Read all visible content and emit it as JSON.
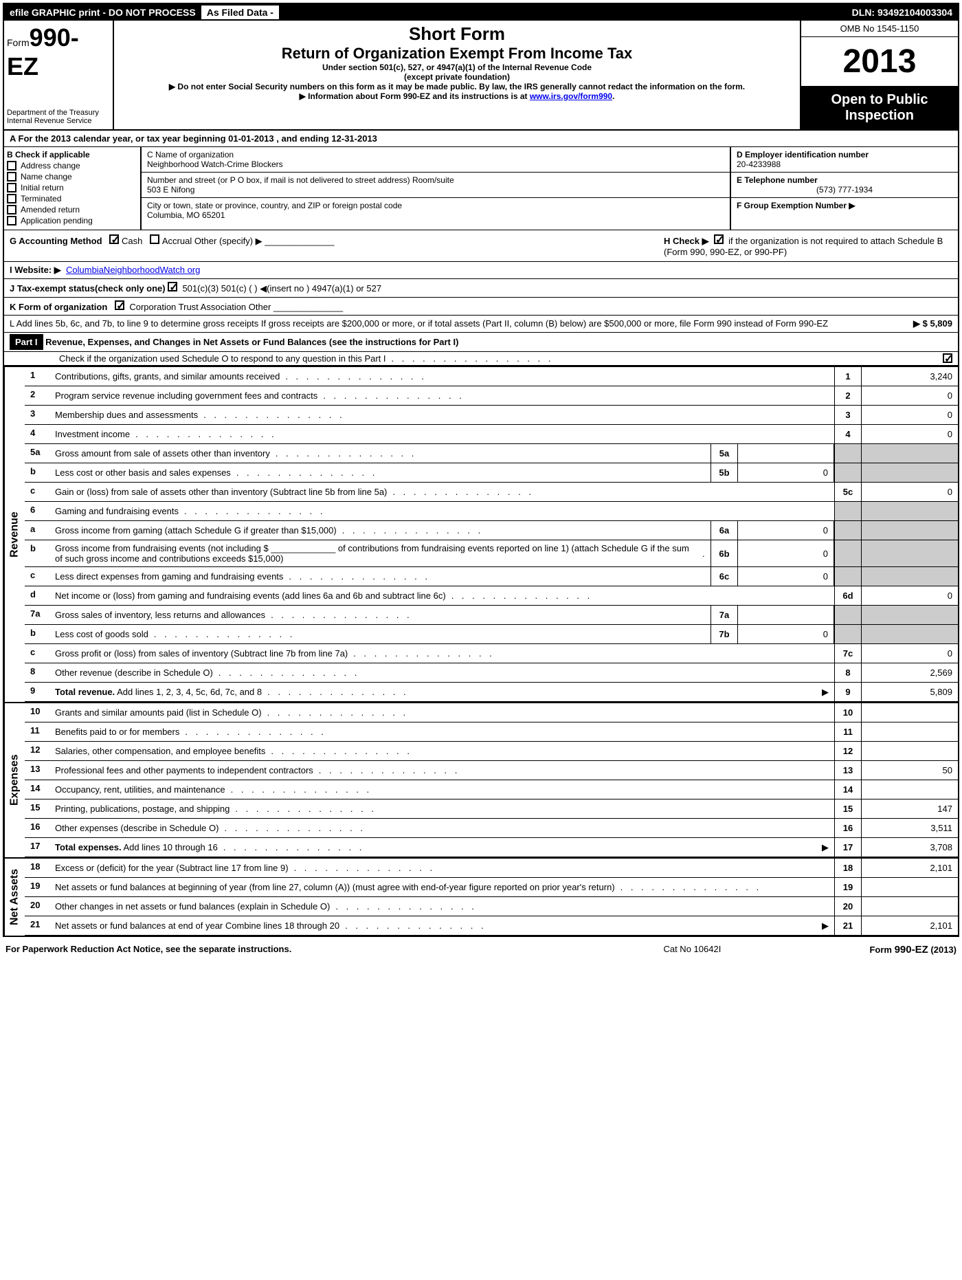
{
  "top_bar": {
    "left": "efile GRAPHIC print - DO NOT PROCESS",
    "mid": "As Filed Data -",
    "right": "DLN: 93492104003304"
  },
  "header": {
    "form_label": "Form",
    "form_number": "990-EZ",
    "dept1": "Department of the Treasury",
    "dept2": "Internal Revenue Service",
    "title1": "Short Form",
    "title2": "Return of Organization Exempt From Income Tax",
    "sub1": "Under section 501(c), 527, or 4947(a)(1) of the Internal Revenue Code",
    "sub2": "(except private foundation)",
    "sub3": "▶ Do not enter Social Security numbers on this form as it may be made public. By law, the IRS generally cannot redact the information on the form.",
    "sub4": "▶ Information about Form 990-EZ and its instructions is at ",
    "sub4_link": "www.irs.gov/form990",
    "omb": "OMB No 1545-1150",
    "year": "2013",
    "open": "Open to Public Inspection"
  },
  "row_a": "A  For the 2013 calendar year, or tax year beginning 01-01-2013         , and ending 12-31-2013",
  "col_b": {
    "header": "B  Check if applicable",
    "items": [
      "Address change",
      "Name change",
      "Initial return",
      "Terminated",
      "Amended return",
      "Application pending"
    ]
  },
  "col_c": {
    "name_label": "C Name of organization",
    "name": "Neighborhood Watch-Crime Blockers",
    "street_label": "Number and street (or P O box, if mail is not delivered to street address) Room/suite",
    "street": "503 E Nifong",
    "city_label": "City or town, state or province, country, and ZIP or foreign postal code",
    "city": "Columbia, MO  65201"
  },
  "col_d": {
    "ein_label": "D Employer identification number",
    "ein": "20-4233988",
    "tel_label": "E Telephone number",
    "tel": "(573) 777-1934",
    "group_label": "F Group Exemption Number   ▶"
  },
  "row_g": "G Accounting Method",
  "row_g_cash": "Cash",
  "row_g_accrual": "Accrual    Other (specify) ▶",
  "row_h": "H  Check ▶",
  "row_h2": "if the organization is not required to attach Schedule B (Form 990, 990-EZ, or 990-PF)",
  "row_i": "I Website: ▶",
  "row_i_link": "ColumbiaNeighborhoodWatch org",
  "row_j": "J Tax-exempt status(check only one) ",
  "row_j_opts": "501(c)(3)      501(c) (  ) ◀(insert no )     4947(a)(1) or      527",
  "row_k": "K Form of organization",
  "row_k_opts": "Corporation      Trust      Association      Other",
  "row_l": "L Add lines 5b, 6c, and 7b, to line 9 to determine gross receipts  If gross receipts are $200,000 or more, or if total assets (Part II, column (B) below) are $500,000 or more, file Form 990 instead of Form 990-EZ",
  "row_l_amt": "▶ $ 5,809",
  "part1": {
    "label": "Part I",
    "title": "Revenue, Expenses, and Changes in Net Assets or Fund Balances (see the instructions for Part I)",
    "sub": "Check if the organization used Schedule O to respond to any question in this Part I"
  },
  "sections": {
    "revenue": "Revenue",
    "expenses": "Expenses",
    "net_assets": "Net Assets"
  },
  "lines": [
    {
      "n": "1",
      "desc": "Contributions, gifts, grants, and similar amounts received",
      "en": "1",
      "ev": "3,240"
    },
    {
      "n": "2",
      "desc": "Program service revenue including government fees and contracts",
      "en": "2",
      "ev": "0"
    },
    {
      "n": "3",
      "desc": "Membership dues and assessments",
      "en": "3",
      "ev": "0"
    },
    {
      "n": "4",
      "desc": "Investment income",
      "en": "4",
      "ev": "0"
    },
    {
      "n": "5a",
      "desc": "Gross amount from sale of assets other than inventory",
      "sn": "5a",
      "sv": "",
      "shaded": true
    },
    {
      "n": "b",
      "desc": "Less  cost or other basis and sales expenses",
      "sn": "5b",
      "sv": "0",
      "shaded": true
    },
    {
      "n": "c",
      "desc": "Gain or (loss) from sale of assets other than inventory (Subtract line 5b from line 5a)",
      "en": "5c",
      "ev": "0"
    },
    {
      "n": "6",
      "desc": "Gaming and fundraising events",
      "shaded": true,
      "noend": true
    },
    {
      "n": "a",
      "desc": "Gross income from gaming (attach Schedule G if greater than $15,000)",
      "sn": "6a",
      "sv": "0",
      "shaded": true
    },
    {
      "n": "b",
      "desc": "Gross income from fundraising events (not including $ _____________ of contributions from fundraising events reported on line 1) (attach Schedule G if the sum of such gross income and contributions exceeds $15,000)",
      "sn": "6b",
      "sv": "0",
      "shaded": true
    },
    {
      "n": "c",
      "desc": "Less  direct expenses from gaming and fundraising events",
      "sn": "6c",
      "sv": "0",
      "shaded": true
    },
    {
      "n": "d",
      "desc": "Net income or (loss) from gaming and fundraising events (add lines 6a and 6b and subtract line 6c)",
      "en": "6d",
      "ev": "0"
    },
    {
      "n": "7a",
      "desc": "Gross sales of inventory, less returns and allowances",
      "sn": "7a",
      "sv": "",
      "shaded": true
    },
    {
      "n": "b",
      "desc": "Less  cost of goods sold",
      "sn": "7b",
      "sv": "0",
      "shaded": true
    },
    {
      "n": "c",
      "desc": "Gross profit or (loss) from sales of inventory (Subtract line 7b from line 7a)",
      "en": "7c",
      "ev": "0"
    },
    {
      "n": "8",
      "desc": "Other revenue (describe in Schedule O)",
      "en": "8",
      "ev": "2,569"
    },
    {
      "n": "9",
      "desc": "Total revenue. Add lines 1, 2, 3, 4, 5c, 6d, 7c, and 8",
      "en": "9",
      "ev": "5,809",
      "bold": true,
      "arrow": true
    }
  ],
  "exp_lines": [
    {
      "n": "10",
      "desc": "Grants and similar amounts paid (list in Schedule O)",
      "en": "10",
      "ev": ""
    },
    {
      "n": "11",
      "desc": "Benefits paid to or for members",
      "en": "11",
      "ev": ""
    },
    {
      "n": "12",
      "desc": "Salaries, other compensation, and employee benefits",
      "en": "12",
      "ev": ""
    },
    {
      "n": "13",
      "desc": "Professional fees and other payments to independent contractors",
      "en": "13",
      "ev": "50"
    },
    {
      "n": "14",
      "desc": "Occupancy, rent, utilities, and maintenance",
      "en": "14",
      "ev": ""
    },
    {
      "n": "15",
      "desc": "Printing, publications, postage, and shipping",
      "en": "15",
      "ev": "147"
    },
    {
      "n": "16",
      "desc": "Other expenses (describe in Schedule O)",
      "en": "16",
      "ev": "3,511"
    },
    {
      "n": "17",
      "desc": "Total expenses. Add lines 10 through 16",
      "en": "17",
      "ev": "3,708",
      "bold": true,
      "arrow": true
    }
  ],
  "na_lines": [
    {
      "n": "18",
      "desc": "Excess or (deficit) for the year (Subtract line 17 from line 9)",
      "en": "18",
      "ev": "2,101"
    },
    {
      "n": "19",
      "desc": "Net assets or fund balances at beginning of year (from line 27, column (A)) (must agree with end-of-year figure reported on prior year's return)",
      "en": "19",
      "ev": ""
    },
    {
      "n": "20",
      "desc": "Other changes in net assets or fund balances (explain in Schedule O)",
      "en": "20",
      "ev": ""
    },
    {
      "n": "21",
      "desc": "Net assets or fund balances at end of year  Combine lines 18 through 20",
      "en": "21",
      "ev": "2,101",
      "arrow": true
    }
  ],
  "footer": {
    "left": "For Paperwork Reduction Act Notice, see the separate instructions.",
    "mid": "Cat No 10642I",
    "right": "Form 990-EZ (2013)"
  }
}
